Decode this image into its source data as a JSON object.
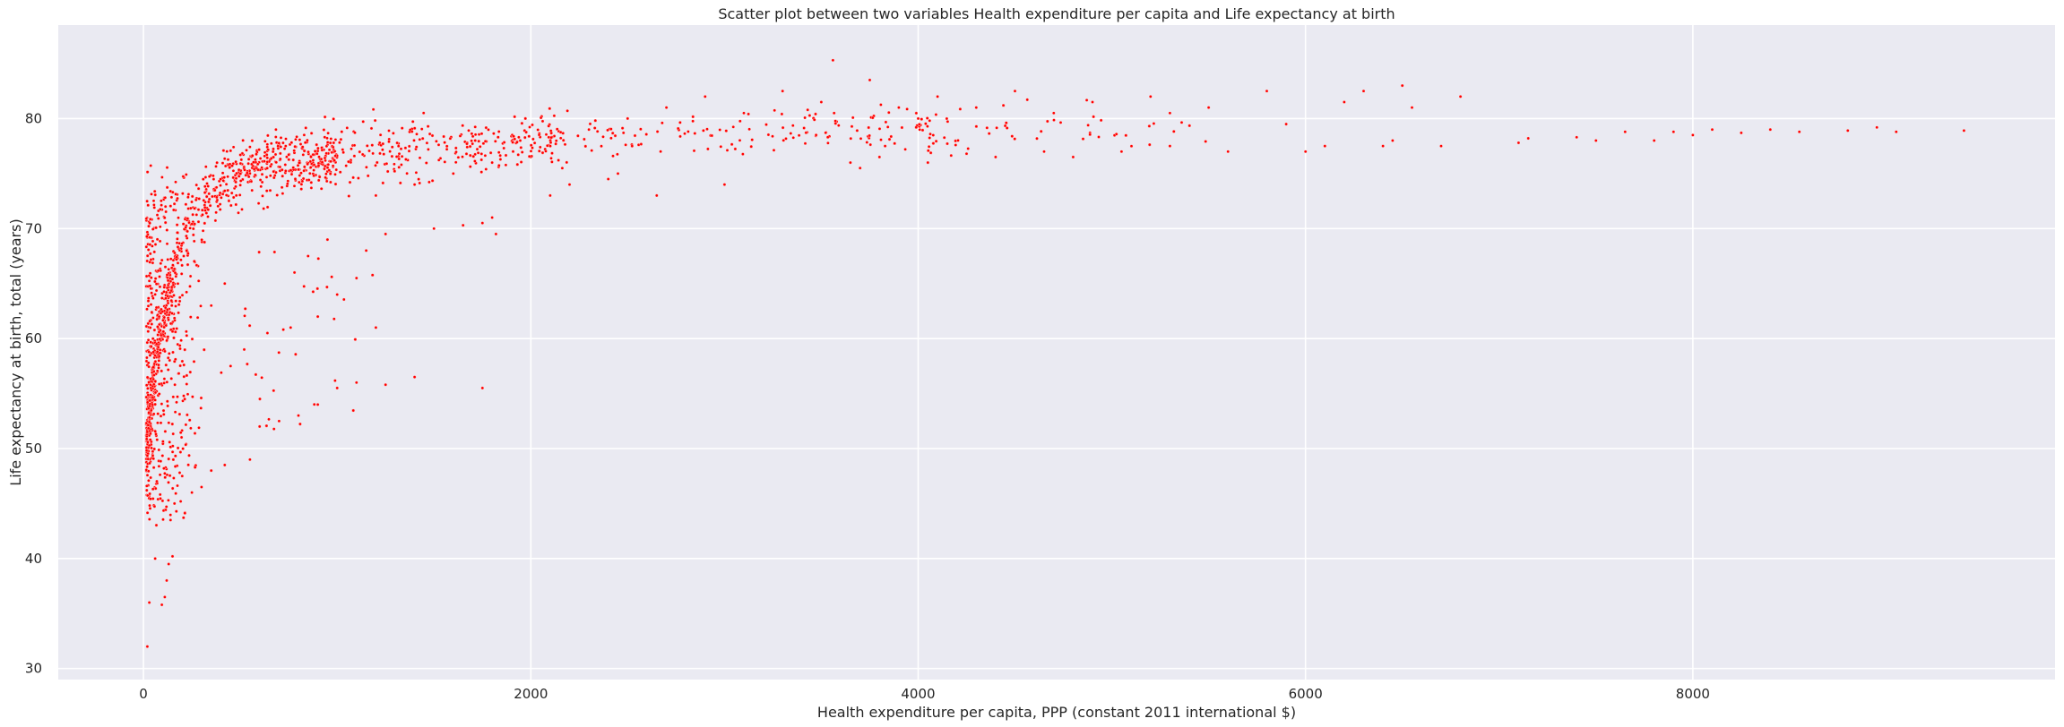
{
  "chart_data": {
    "type": "scatter",
    "title": "Scatter plot between two variables Health expenditure per capita and Life expectancy at birth",
    "xlabel": "Health expenditure per capita, PPP (constant 2011 international $)",
    "ylabel": "Life expectancy at birth, total (years)",
    "xlim": [
      -440,
      9870
    ],
    "ylim": [
      29,
      88.5
    ],
    "xticks": [
      0,
      2000,
      4000,
      6000,
      8000
    ],
    "yticks": [
      30,
      40,
      50,
      60,
      70,
      80
    ],
    "xtick_labels": [
      "0",
      "2000",
      "4000",
      "6000",
      "8000"
    ],
    "ytick_labels": [
      "30",
      "40",
      "50",
      "60",
      "70",
      "80"
    ],
    "grid": true,
    "color": "#ff0000",
    "background": "#eaeaf2",
    "approximate_point_count": 3900,
    "points": [
      [
        20,
        32.0
      ],
      [
        30,
        36.0
      ],
      [
        95,
        35.8
      ],
      [
        110,
        36.5
      ],
      [
        120,
        38.0
      ],
      [
        130,
        39.5
      ],
      [
        150,
        40.2
      ],
      [
        60,
        40.0
      ],
      [
        140,
        43.5
      ],
      [
        160,
        45.0
      ],
      [
        200,
        47.5
      ],
      [
        250,
        46.0
      ],
      [
        300,
        46.5
      ],
      [
        350,
        48.0
      ],
      [
        420,
        48.5
      ],
      [
        550,
        49.0
      ],
      [
        600,
        52.0
      ],
      [
        700,
        52.5
      ],
      [
        800,
        53.0
      ],
      [
        900,
        54.0
      ],
      [
        1000,
        55.5
      ],
      [
        1100,
        56.0
      ],
      [
        1250,
        55.8
      ],
      [
        1400,
        56.5
      ],
      [
        1750,
        55.5
      ],
      [
        450,
        57.5
      ],
      [
        520,
        59.0
      ],
      [
        640,
        60.5
      ],
      [
        760,
        61.0
      ],
      [
        900,
        62.0
      ],
      [
        1000,
        64.0
      ],
      [
        1100,
        65.5
      ],
      [
        1200,
        61.0
      ],
      [
        350,
        63.0
      ],
      [
        420,
        65.0
      ],
      [
        780,
        66.0
      ],
      [
        850,
        67.5
      ],
      [
        950,
        69.0
      ],
      [
        1150,
        68.0
      ],
      [
        1250,
        69.5
      ],
      [
        1500,
        70.0
      ],
      [
        1650,
        70.3
      ],
      [
        1750,
        70.5
      ],
      [
        1800,
        71.0
      ],
      [
        1820,
        69.5
      ],
      [
        1200,
        73.0
      ],
      [
        1400,
        74.0
      ],
      [
        1600,
        75.0
      ],
      [
        1800,
        76.0
      ],
      [
        2000,
        76.5
      ],
      [
        2100,
        73.0
      ],
      [
        2200,
        74.0
      ],
      [
        2400,
        74.5
      ],
      [
        2450,
        75.0
      ],
      [
        2650,
        73.0
      ],
      [
        3000,
        74.0
      ],
      [
        2100,
        78.0
      ],
      [
        2300,
        79.0
      ],
      [
        2500,
        80.0
      ],
      [
        2700,
        81.0
      ],
      [
        2900,
        82.0
      ],
      [
        3100,
        80.5
      ],
      [
        3300,
        82.5
      ],
      [
        3500,
        81.5
      ],
      [
        3560,
        85.3
      ],
      [
        3750,
        83.5
      ],
      [
        3900,
        81.0
      ],
      [
        4000,
        80.0
      ],
      [
        4100,
        82.0
      ],
      [
        4300,
        81.0
      ],
      [
        4500,
        82.5
      ],
      [
        4700,
        80.5
      ],
      [
        4900,
        81.5
      ],
      [
        5200,
        82.0
      ],
      [
        5300,
        80.5
      ],
      [
        5500,
        81.0
      ],
      [
        5600,
        77.0
      ],
      [
        5800,
        82.5
      ],
      [
        5900,
        79.5
      ],
      [
        6000,
        77.0
      ],
      [
        6100,
        77.5
      ],
      [
        6200,
        81.5
      ],
      [
        6300,
        82.5
      ],
      [
        6400,
        77.5
      ],
      [
        6450,
        78.0
      ],
      [
        6500,
        83.0
      ],
      [
        6550,
        81.0
      ],
      [
        6700,
        77.5
      ],
      [
        6800,
        82.0
      ],
      [
        7100,
        77.8
      ],
      [
        7150,
        78.2
      ],
      [
        7400,
        78.3
      ],
      [
        7500,
        78.0
      ],
      [
        7650,
        78.8
      ],
      [
        7800,
        78.0
      ],
      [
        7900,
        78.8
      ],
      [
        8000,
        78.5
      ],
      [
        8100,
        79.0
      ],
      [
        8250,
        78.7
      ],
      [
        8400,
        79.0
      ],
      [
        8550,
        78.8
      ],
      [
        8800,
        78.9
      ],
      [
        8950,
        79.2
      ],
      [
        9050,
        78.8
      ],
      [
        9400,
        78.9
      ],
      [
        3650,
        76.0
      ],
      [
        3700,
        75.5
      ],
      [
        3800,
        76.5
      ],
      [
        4050,
        76.0
      ],
      [
        4400,
        76.5
      ],
      [
        4650,
        77.0
      ],
      [
        4800,
        76.5
      ],
      [
        5050,
        77.0
      ],
      [
        5300,
        77.5
      ],
      [
        4250,
        76.8
      ]
    ]
  }
}
